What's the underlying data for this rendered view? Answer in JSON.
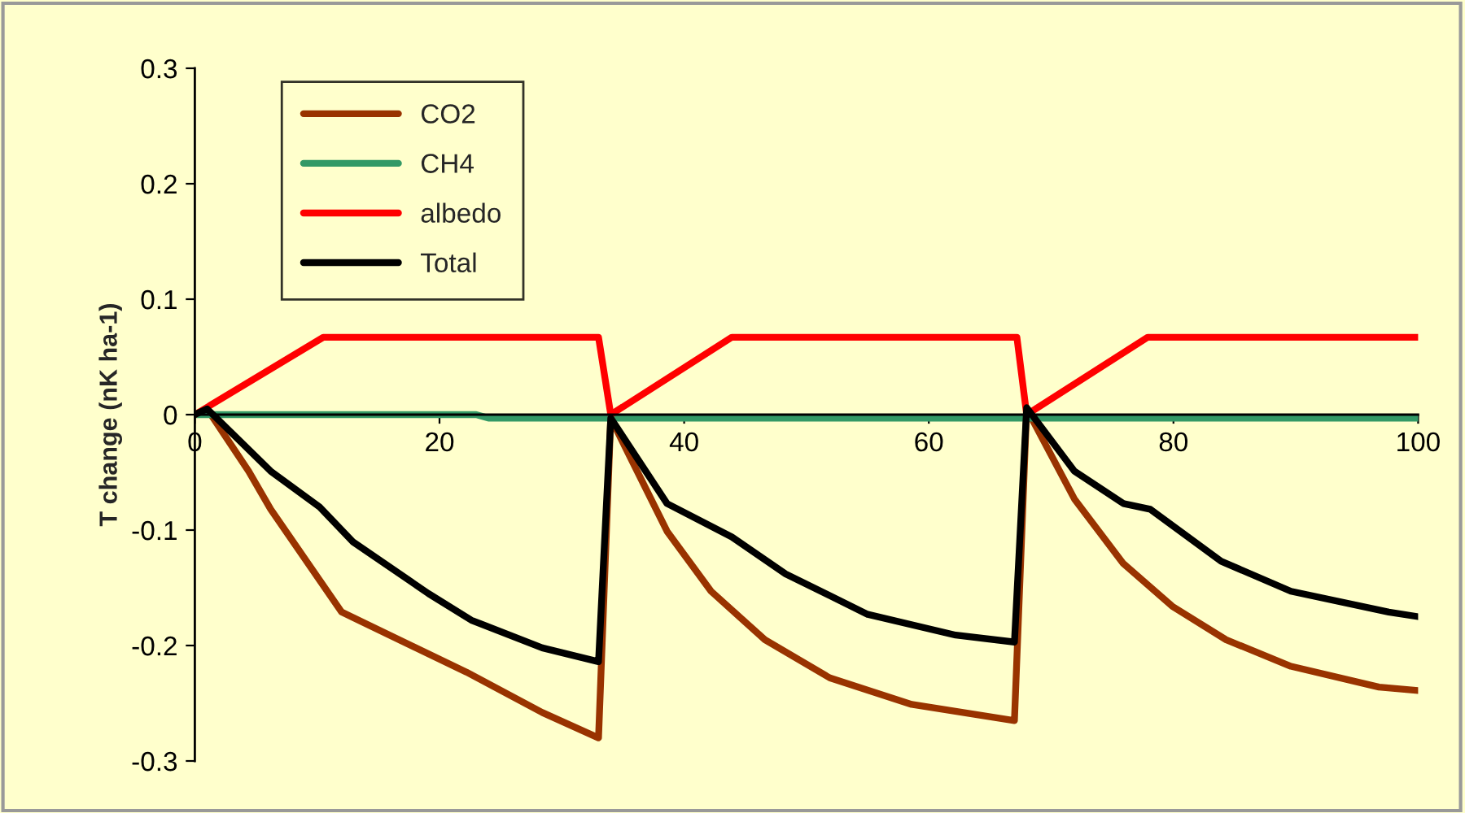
{
  "chart_data": {
    "type": "line",
    "ylabel": "T change (nK ha-1)",
    "xlim": [
      0,
      100
    ],
    "xticks": [
      0,
      20,
      40,
      60,
      80,
      100
    ],
    "ylim": [
      -0.3,
      0.3
    ],
    "yticks": [
      -0.3,
      -0.2,
      -0.1,
      0,
      0.1,
      0.2,
      0.3
    ],
    "grid": false,
    "legend": "top left",
    "marker": "none",
    "line_style": "solid",
    "series": [
      {
        "name": "CO2",
        "color": "#993300",
        "x": [
          0,
          1,
          4.4,
          6.2,
          12,
          22.2,
          28.4,
          33,
          34,
          38.6,
          42.2,
          46.6,
          51.9,
          58.6,
          67,
          68,
          71.9,
          75.9,
          79.9,
          84.3,
          89.6,
          96.8,
          100
        ],
        "values": [
          0,
          0.005,
          -0.049,
          -0.082,
          -0.171,
          -0.223,
          -0.258,
          -0.28,
          -0.003,
          -0.101,
          -0.153,
          -0.195,
          -0.228,
          -0.251,
          -0.265,
          0.005,
          -0.073,
          -0.129,
          -0.166,
          -0.195,
          -0.218,
          -0.236,
          -0.239
        ]
      },
      {
        "name": "CH4",
        "color": "#339966",
        "x": [
          0,
          23,
          24,
          100
        ],
        "values": [
          0,
          0,
          -0.003,
          -0.003
        ]
      },
      {
        "name": "albedo",
        "color": "#ff0000",
        "x": [
          0,
          10.5,
          33,
          34,
          43.9,
          67.2,
          68,
          77.9,
          100
        ],
        "values": [
          0,
          0.067,
          0.067,
          0,
          0.067,
          0.067,
          0,
          0.067,
          0.067
        ]
      },
      {
        "name": "Total",
        "color": "#000000",
        "x": [
          0,
          1,
          6.2,
          10.2,
          12.9,
          19.1,
          22.6,
          28.4,
          33,
          34,
          38.6,
          43.9,
          48.3,
          55,
          62.2,
          67,
          68,
          71.9,
          75.9,
          78.1,
          83.9,
          89.6,
          97.6,
          100
        ],
        "values": [
          0,
          0.005,
          -0.049,
          -0.08,
          -0.11,
          -0.155,
          -0.178,
          -0.202,
          -0.214,
          -0.003,
          -0.077,
          -0.106,
          -0.138,
          -0.173,
          -0.191,
          -0.197,
          0.006,
          -0.049,
          -0.077,
          -0.082,
          -0.127,
          -0.153,
          -0.171,
          -0.175
        ]
      }
    ]
  }
}
